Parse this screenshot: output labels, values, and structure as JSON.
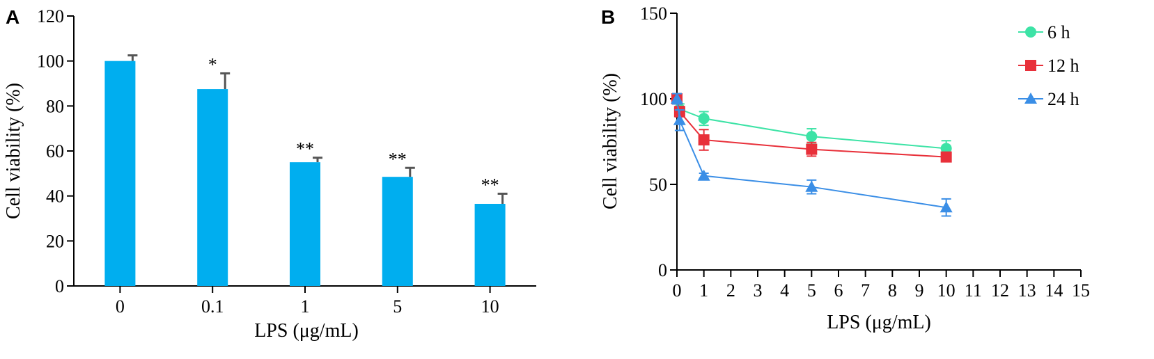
{
  "chart_data": [
    {
      "panel_label": "A",
      "type": "bar",
      "xlabel": "LPS (μg/mL)",
      "ylabel": "Cell viability (%)",
      "categories": [
        "0",
        "0.1",
        "1",
        "5",
        "10"
      ],
      "values": [
        100,
        87.5,
        55,
        48.5,
        36.5
      ],
      "errors": [
        2.5,
        7,
        2,
        4,
        4.5
      ],
      "significance": [
        "",
        "*",
        "**",
        "**",
        "**"
      ],
      "ylim": [
        0,
        120
      ],
      "yticks": [
        "0",
        "20",
        "40",
        "60",
        "80",
        "100",
        "120"
      ],
      "bar_color": "#00AEEF",
      "grid": false
    },
    {
      "panel_label": "B",
      "type": "line",
      "xlabel": "LPS (μg/mL)",
      "ylabel": "Cell viability (%)",
      "xlim": [
        0,
        15
      ],
      "ylim": [
        0,
        150
      ],
      "xticks": [
        "0",
        "1",
        "2",
        "3",
        "4",
        "5",
        "6",
        "7",
        "8",
        "9",
        "10",
        "11",
        "12",
        "13",
        "14",
        "15"
      ],
      "yticks": [
        "0",
        "50",
        "100",
        "150"
      ],
      "x": [
        0,
        0.1,
        1,
        5,
        10
      ],
      "series": [
        {
          "name": "6 h",
          "values": [
            100,
            94,
            88.5,
            78,
            71
          ],
          "errors": [
            3,
            3,
            4,
            4.5,
            4.5
          ],
          "color": "#3DE3A6",
          "marker": "circle"
        },
        {
          "name": "12 h",
          "values": [
            100,
            92.5,
            76,
            70.5,
            66
          ],
          "errors": [
            3,
            3,
            6,
            4,
            2.5
          ],
          "color": "#E8303A",
          "marker": "square"
        },
        {
          "name": "24 h",
          "values": [
            100,
            87.5,
            55,
            48.5,
            36.5
          ],
          "errors": [
            3,
            6,
            1.5,
            4,
            5
          ],
          "color": "#3A8EE6",
          "marker": "triangle"
        }
      ],
      "legend_position": "top-right",
      "grid": false
    }
  ]
}
